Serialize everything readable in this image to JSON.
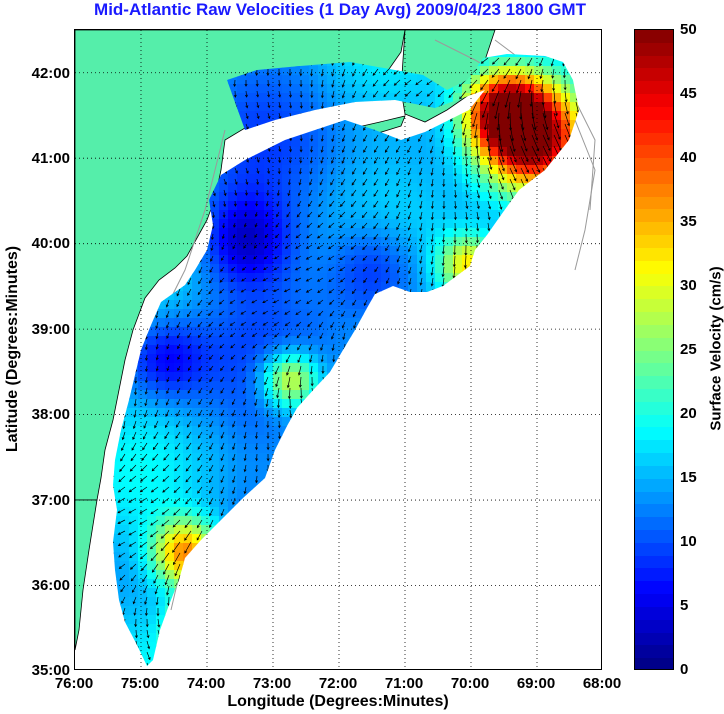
{
  "title": "Mid-Atlantic Raw Velocities (1 Day Avg) 2009/04/23 1800 GMT",
  "colors": {
    "title": "#1a1aff",
    "land": "#55eeaa",
    "coast": "#000000",
    "bathymetry": "#9a9a9a",
    "grid": "#000000",
    "vector": "#000000"
  },
  "map": {
    "x_axis_title": "Longitude (Degrees:Minutes)",
    "y_axis_title": "Latitude (Degrees:Minutes)",
    "lon_range": [
      -76.0,
      -68.0
    ],
    "lat_range": [
      35.0,
      42.5
    ],
    "x_tick_labels": [
      "76:00",
      "75:00",
      "74:00",
      "73:00",
      "72:00",
      "71:00",
      "70:00",
      "69:00",
      "68:00"
    ],
    "y_tick_labels": [
      "42:00",
      "41:00",
      "40:00",
      "39:00",
      "38:00",
      "37:00",
      "36:00",
      "35:00"
    ],
    "grid": "dotted",
    "field": "surface current velocity vectors colored by speed"
  },
  "colorbar": {
    "title": "Surface Velocity (cm/s)",
    "range": [
      0,
      50
    ],
    "tick_labels": [
      "50",
      "45",
      "40",
      "35",
      "30",
      "25",
      "20",
      "15",
      "10",
      "5",
      "0"
    ],
    "colormap": "jet"
  }
}
